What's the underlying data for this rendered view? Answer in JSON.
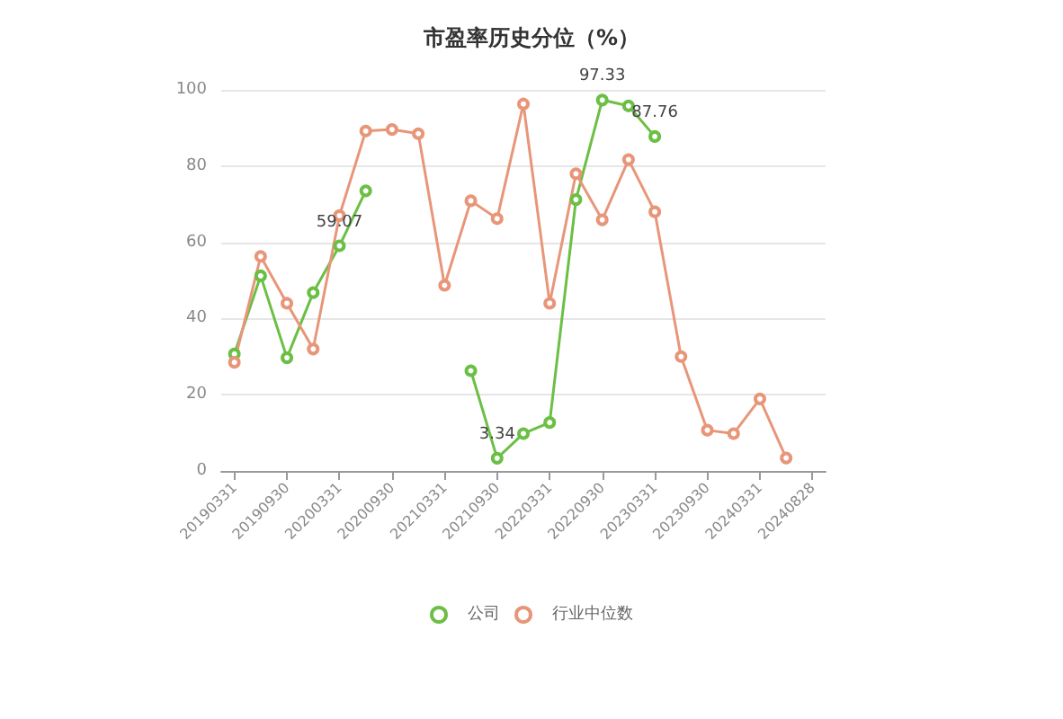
{
  "chart_data": {
    "type": "line",
    "title": "市盈率历史分位（%）",
    "categories": [
      "20190331",
      null,
      "20190930",
      null,
      "20200331",
      null,
      "20200930",
      null,
      "20210331",
      null,
      "20210930",
      null,
      "20220331",
      null,
      "20220930",
      null,
      "20230331",
      null,
      "20230930",
      null,
      "20240331",
      null,
      "20240828"
    ],
    "series": [
      {
        "name": "公司",
        "color": "#6cbf45",
        "values": [
          30.7,
          51.2,
          29.7,
          46.8,
          59.07,
          73.5,
          null,
          null,
          null,
          26.3,
          3.34,
          9.8,
          12.7,
          71.2,
          97.33,
          95.8,
          87.76,
          null,
          null,
          null,
          null,
          null,
          null
        ],
        "value_labels": [
          null,
          null,
          null,
          null,
          "59.07",
          null,
          null,
          null,
          null,
          null,
          "3.34",
          null,
          null,
          null,
          "97.33",
          null,
          "87.76",
          null,
          null,
          null,
          null,
          null,
          null
        ]
      },
      {
        "name": "行业中位数",
        "color": "#e8967a",
        "values": [
          28.5,
          56.3,
          44,
          32,
          67,
          89.2,
          89.6,
          88.5,
          48.7,
          70.9,
          66.2,
          96.3,
          44,
          78,
          65.9,
          81.7,
          68,
          30,
          10.7,
          9.8,
          18.9,
          3.4,
          null
        ]
      }
    ],
    "ylim": [
      0,
      100
    ],
    "yticks": [
      0,
      20,
      40,
      60,
      80,
      100
    ],
    "grid": "y",
    "legend": "bottom",
    "marker": "circle",
    "line_style": "solid"
  }
}
